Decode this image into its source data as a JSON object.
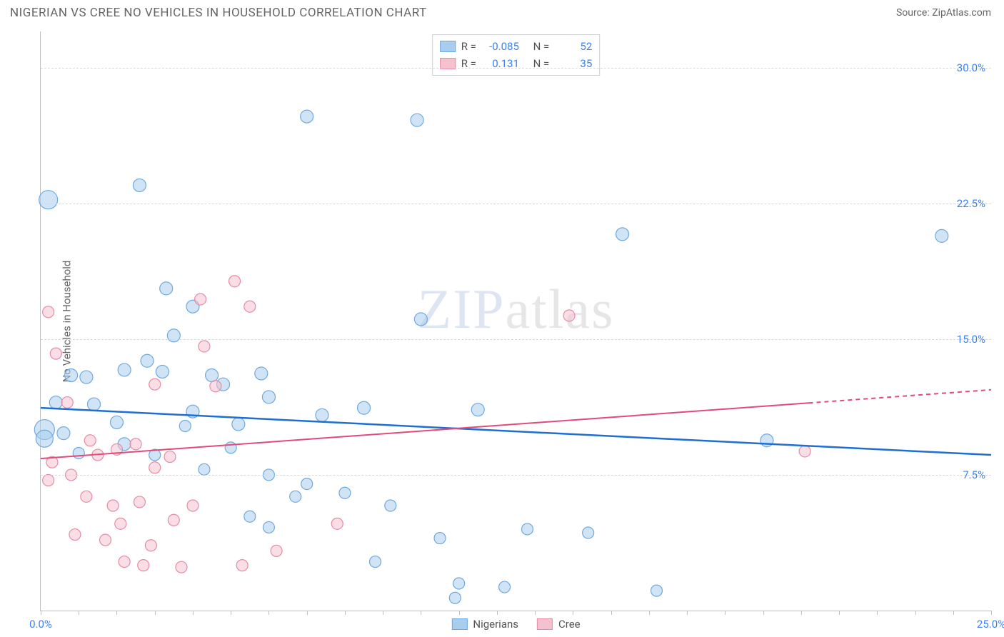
{
  "header": {
    "title": "NIGERIAN VS CREE NO VEHICLES IN HOUSEHOLD CORRELATION CHART",
    "source_prefix": "Source: ",
    "source_link": "ZipAtlas.com"
  },
  "ylabel": "No Vehicles in Household",
  "watermark": {
    "zip": "ZIP",
    "rest": "atlas"
  },
  "chart": {
    "type": "scatter-with-trendlines",
    "background_color": "#ffffff",
    "grid_color": "#d8d8d8",
    "axis_color": "#bfbfbf",
    "tick_label_color": "#3b82f6",
    "label_color": "#666666",
    "label_fontsize": 15,
    "title_fontsize": 17,
    "xlim": [
      0,
      25
    ],
    "ylim": [
      0,
      32
    ],
    "x_ticks_minor_step": 1,
    "x_tick_labels": [
      {
        "x": 0,
        "label": "0.0%"
      },
      {
        "x": 25,
        "label": "25.0%"
      }
    ],
    "y_gridlines": [
      7.5,
      15.0,
      22.5,
      30.0
    ],
    "y_tick_labels": [
      {
        "y": 7.5,
        "label": "7.5%"
      },
      {
        "y": 15.0,
        "label": "15.0%"
      },
      {
        "y": 22.5,
        "label": "22.5%"
      },
      {
        "y": 30.0,
        "label": "30.0%"
      }
    ],
    "marker_base_radius": 8,
    "marker_opacity": 0.55,
    "series": [
      {
        "name": "Nigerians",
        "fill": "#a9cdef",
        "stroke": "#6fa9df",
        "trend_color": "#1f6fd1",
        "trend_width": 2.5,
        "trend": {
          "x1": 0,
          "y1": 11.2,
          "x2": 25,
          "y2": 8.6,
          "dash_after_x": null
        },
        "R": "-0.085",
        "N": "52",
        "points": [
          {
            "x": 0.2,
            "y": 22.7,
            "r": 13
          },
          {
            "x": 0.1,
            "y": 10.0,
            "r": 14
          },
          {
            "x": 0.1,
            "y": 9.5,
            "r": 12
          },
          {
            "x": 2.6,
            "y": 23.5,
            "r": 9
          },
          {
            "x": 7.0,
            "y": 27.3,
            "r": 9
          },
          {
            "x": 9.9,
            "y": 27.1,
            "r": 9
          },
          {
            "x": 15.3,
            "y": 20.8,
            "r": 9
          },
          {
            "x": 23.7,
            "y": 20.7,
            "r": 9
          },
          {
            "x": 0.8,
            "y": 13.0,
            "r": 9
          },
          {
            "x": 1.2,
            "y": 12.9,
            "r": 9
          },
          {
            "x": 2.2,
            "y": 13.3,
            "r": 9
          },
          {
            "x": 2.0,
            "y": 10.4,
            "r": 9
          },
          {
            "x": 2.2,
            "y": 9.2,
            "r": 9
          },
          {
            "x": 3.3,
            "y": 17.8,
            "r": 9
          },
          {
            "x": 3.2,
            "y": 13.2,
            "r": 9
          },
          {
            "x": 3.5,
            "y": 15.2,
            "r": 9
          },
          {
            "x": 4.0,
            "y": 16.8,
            "r": 9
          },
          {
            "x": 4.5,
            "y": 13.0,
            "r": 9
          },
          {
            "x": 4.0,
            "y": 11.0,
            "r": 9
          },
          {
            "x": 5.2,
            "y": 10.3,
            "r": 9
          },
          {
            "x": 5.8,
            "y": 13.1,
            "r": 9
          },
          {
            "x": 6.0,
            "y": 7.5,
            "r": 8
          },
          {
            "x": 5.5,
            "y": 5.2,
            "r": 8
          },
          {
            "x": 6.0,
            "y": 4.6,
            "r": 8
          },
          {
            "x": 6.7,
            "y": 6.3,
            "r": 8
          },
          {
            "x": 7.4,
            "y": 10.8,
            "r": 9
          },
          {
            "x": 8.5,
            "y": 11.2,
            "r": 9
          },
          {
            "x": 8.0,
            "y": 6.5,
            "r": 8
          },
          {
            "x": 8.8,
            "y": 2.7,
            "r": 8
          },
          {
            "x": 9.2,
            "y": 5.8,
            "r": 8
          },
          {
            "x": 10.0,
            "y": 16.1,
            "r": 9
          },
          {
            "x": 10.5,
            "y": 4.0,
            "r": 8
          },
          {
            "x": 10.9,
            "y": 0.7,
            "r": 8
          },
          {
            "x": 11.0,
            "y": 1.5,
            "r": 8
          },
          {
            "x": 11.5,
            "y": 11.1,
            "r": 9
          },
          {
            "x": 12.2,
            "y": 1.3,
            "r": 8
          },
          {
            "x": 12.8,
            "y": 4.5,
            "r": 8
          },
          {
            "x": 14.4,
            "y": 4.3,
            "r": 8
          },
          {
            "x": 16.2,
            "y": 1.1,
            "r": 8
          },
          {
            "x": 19.1,
            "y": 9.4,
            "r": 9
          },
          {
            "x": 0.6,
            "y": 9.8,
            "r": 9
          },
          {
            "x": 1.4,
            "y": 11.4,
            "r": 9
          },
          {
            "x": 2.8,
            "y": 13.8,
            "r": 9
          },
          {
            "x": 4.8,
            "y": 12.5,
            "r": 9
          },
          {
            "x": 5.0,
            "y": 9.0,
            "r": 8
          },
          {
            "x": 6.0,
            "y": 11.8,
            "r": 9
          },
          {
            "x": 7.0,
            "y": 7.0,
            "r": 8
          },
          {
            "x": 1.0,
            "y": 8.7,
            "r": 8
          },
          {
            "x": 3.0,
            "y": 8.6,
            "r": 8
          },
          {
            "x": 0.4,
            "y": 11.5,
            "r": 9
          },
          {
            "x": 3.8,
            "y": 10.2,
            "r": 8
          },
          {
            "x": 4.3,
            "y": 7.8,
            "r": 8
          }
        ]
      },
      {
        "name": "Cree",
        "fill": "#f4c2cf",
        "stroke": "#e78aa5",
        "trend_color": "#e24a7b",
        "trend_width": 2,
        "trend": {
          "x1": 0,
          "y1": 8.4,
          "x2": 25,
          "y2": 12.2,
          "dash_after_x": 20.2
        },
        "R": "0.131",
        "N": "35",
        "points": [
          {
            "x": 0.2,
            "y": 16.5,
            "r": 8
          },
          {
            "x": 0.4,
            "y": 14.2,
            "r": 8
          },
          {
            "x": 0.7,
            "y": 11.5,
            "r": 8
          },
          {
            "x": 0.3,
            "y": 8.2,
            "r": 8
          },
          {
            "x": 0.2,
            "y": 7.2,
            "r": 8
          },
          {
            "x": 0.8,
            "y": 7.5,
            "r": 8
          },
          {
            "x": 0.9,
            "y": 4.2,
            "r": 8
          },
          {
            "x": 1.2,
            "y": 6.3,
            "r": 8
          },
          {
            "x": 1.3,
            "y": 9.4,
            "r": 8
          },
          {
            "x": 1.5,
            "y": 8.6,
            "r": 8
          },
          {
            "x": 1.9,
            "y": 5.8,
            "r": 8
          },
          {
            "x": 2.0,
            "y": 8.9,
            "r": 8
          },
          {
            "x": 2.1,
            "y": 4.8,
            "r": 8
          },
          {
            "x": 2.2,
            "y": 2.7,
            "r": 8
          },
          {
            "x": 2.5,
            "y": 9.2,
            "r": 8
          },
          {
            "x": 2.6,
            "y": 6.0,
            "r": 8
          },
          {
            "x": 2.7,
            "y": 2.5,
            "r": 8
          },
          {
            "x": 3.0,
            "y": 12.5,
            "r": 8
          },
          {
            "x": 3.0,
            "y": 7.9,
            "r": 8
          },
          {
            "x": 3.4,
            "y": 8.5,
            "r": 8
          },
          {
            "x": 3.5,
            "y": 5.0,
            "r": 8
          },
          {
            "x": 3.7,
            "y": 2.4,
            "r": 8
          },
          {
            "x": 4.2,
            "y": 17.2,
            "r": 8
          },
          {
            "x": 4.3,
            "y": 14.6,
            "r": 8
          },
          {
            "x": 4.6,
            "y": 12.4,
            "r": 8
          },
          {
            "x": 5.1,
            "y": 18.2,
            "r": 8
          },
          {
            "x": 5.3,
            "y": 2.5,
            "r": 8
          },
          {
            "x": 5.5,
            "y": 16.8,
            "r": 8
          },
          {
            "x": 6.2,
            "y": 3.3,
            "r": 8
          },
          {
            "x": 7.8,
            "y": 4.8,
            "r": 8
          },
          {
            "x": 13.9,
            "y": 16.3,
            "r": 8
          },
          {
            "x": 20.1,
            "y": 8.8,
            "r": 8
          },
          {
            "x": 1.7,
            "y": 3.9,
            "r": 8
          },
          {
            "x": 2.9,
            "y": 3.6,
            "r": 8
          },
          {
            "x": 4.0,
            "y": 5.8,
            "r": 8
          }
        ]
      }
    ]
  },
  "legend_top": {
    "R_label": "R =",
    "N_label": "N ="
  },
  "legend_bottom": {
    "items": [
      "Nigerians",
      "Cree"
    ]
  }
}
